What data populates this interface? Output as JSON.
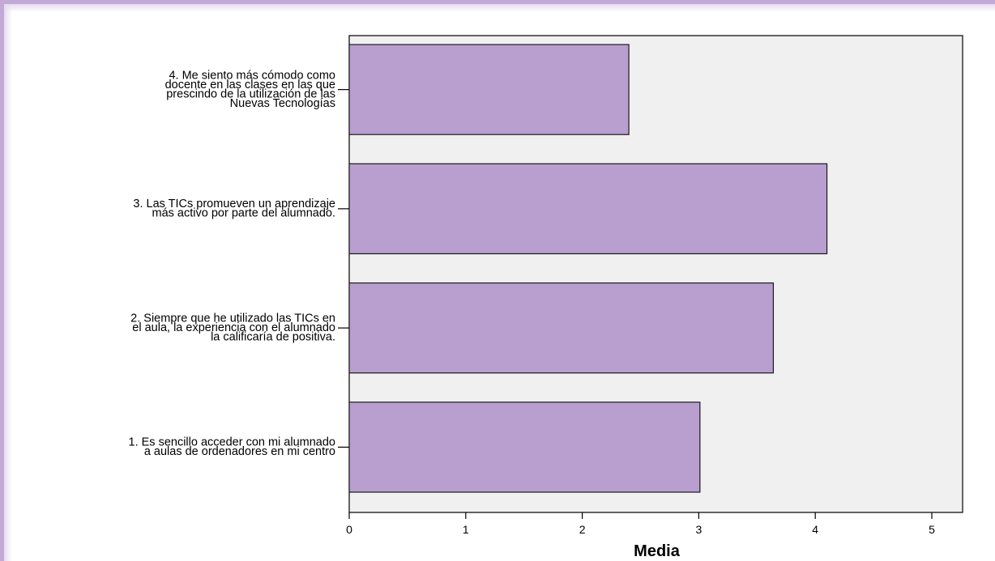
{
  "chart_data": {
    "type": "bar",
    "orientation": "horizontal",
    "title": "",
    "xlabel": "Media",
    "ylabel": "",
    "xlim": [
      0,
      5
    ],
    "xticks": [
      0,
      1,
      2,
      3,
      4,
      5
    ],
    "grid": false,
    "legend": "none",
    "categories": [
      [
        "1. Es sencillo acceder con mi alumnado",
        "a aulas de ordenadores en mi centro"
      ],
      [
        "2. Siempre que he utilizado las TICs en",
        "el  aula, la experiencia con el alumnado",
        "la calificaría de positiva."
      ],
      [
        "3. Las TICs promueven un aprendizaje",
        "más activo por parte del alumnado."
      ],
      [
        "4. Me siento más cómodo como",
        "docente en las clases en las que",
        "prescindo de la utilización de las",
        "Nuevas Tecnologías"
      ]
    ],
    "values": [
      3.01,
      3.64,
      4.1,
      2.4
    ],
    "colors": {
      "bar_fill": "#b89fcf",
      "bar_stroke": "#1a1a1a",
      "plot_background": "#f0f0f0",
      "frame": "#c3a9d6"
    }
  }
}
